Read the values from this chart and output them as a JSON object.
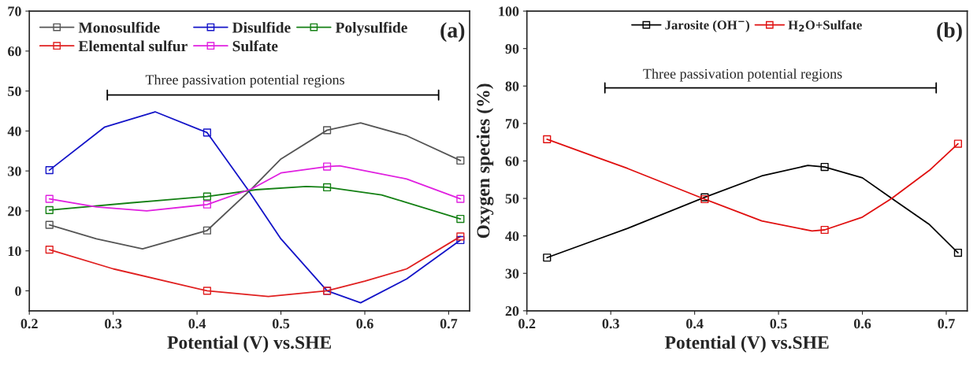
{
  "chart_data": [
    {
      "type": "line",
      "title": "(a)",
      "xlabel": "Potential (V) vs.SHE",
      "xlim": [
        0.2,
        0.725
      ],
      "xticks": [
        0.2,
        0.3,
        0.4,
        0.5,
        0.6,
        0.7
      ],
      "ylim": [
        -5,
        70
      ],
      "yticks": [
        0,
        10,
        20,
        30,
        40,
        50,
        60,
        70
      ],
      "marker": "square",
      "legend": "top left",
      "grid": false,
      "annotations": [
        "Three passivation potential regions"
      ],
      "series": [
        {
          "name": "Monosulfide",
          "color": "#555555",
          "marker": "none",
          "x": [
            0.224,
            0.28,
            0.335,
            0.412,
            0.465,
            0.5,
            0.555,
            0.595,
            0.65,
            0.714
          ],
          "values": [
            16.5,
            13,
            10.5,
            15.1,
            25.5,
            33,
            40.2,
            42,
            38.8,
            32.6
          ]
        },
        {
          "name": "Disulfide",
          "color": "#1414c8",
          "marker": "none",
          "x": [
            0.224,
            0.29,
            0.35,
            0.412,
            0.46,
            0.5,
            0.555,
            0.595,
            0.65,
            0.714
          ],
          "values": [
            30.2,
            41,
            44.8,
            39.6,
            25.5,
            13,
            0,
            -3,
            3,
            12.7
          ]
        },
        {
          "name": "Polysulfide",
          "color": "#148014",
          "marker": "none",
          "x": [
            0.224,
            0.32,
            0.412,
            0.47,
            0.53,
            0.555,
            0.62,
            0.714
          ],
          "values": [
            20.2,
            22,
            23.6,
            25.3,
            26.1,
            25.9,
            24,
            18.0
          ]
        },
        {
          "name": "Elemental sulfur",
          "color": "#e02020",
          "marker": "none",
          "x": [
            0.224,
            0.3,
            0.412,
            0.485,
            0.555,
            0.6,
            0.65,
            0.714
          ],
          "values": [
            10.3,
            5.5,
            0,
            -1.4,
            0,
            2.4,
            5.5,
            13.6
          ]
        },
        {
          "name": "Sulfate",
          "color": "#e020e0",
          "marker": "none",
          "x": [
            0.224,
            0.28,
            0.34,
            0.412,
            0.465,
            0.5,
            0.555,
            0.57,
            0.65,
            0.714
          ],
          "values": [
            23.0,
            21,
            20,
            21.6,
            25.5,
            29.5,
            31.1,
            31.3,
            28,
            23.0
          ]
        },
        {
          "type": "scatter",
          "color": "#555555",
          "x": [
            0.224,
            0.412,
            0.555,
            0.714
          ],
          "values": [
            16.5,
            15.1,
            40.2,
            32.6
          ]
        },
        {
          "type": "scatter",
          "color": "#1414c8",
          "x": [
            0.224,
            0.412,
            0.555,
            0.714
          ],
          "values": [
            30.2,
            39.6,
            0,
            12.7
          ]
        },
        {
          "type": "scatter",
          "color": "#148014",
          "x": [
            0.224,
            0.412,
            0.555,
            0.714
          ],
          "values": [
            20.2,
            23.6,
            25.9,
            18.0
          ]
        },
        {
          "type": "scatter",
          "color": "#e02020",
          "x": [
            0.224,
            0.412,
            0.555,
            0.714
          ],
          "values": [
            10.3,
            0,
            0,
            13.6
          ]
        },
        {
          "type": "scatter",
          "color": "#e020e0",
          "x": [
            0.224,
            0.412,
            0.555,
            0.714
          ],
          "values": [
            23.0,
            21.6,
            31.1,
            23.0
          ]
        },
        {
          "type": "line",
          "color": "#000000",
          "marker": "none",
          "x": [
            0.293,
            0.293,
            0.293,
            0.688,
            0.688,
            0.688
          ],
          "values": [
            47.8,
            50.2,
            49,
            49,
            50.2,
            47.8
          ]
        }
      ]
    },
    {
      "type": "line",
      "title": "(b)",
      "xlabel": "Potential (V) vs.SHE",
      "ylabel": "Oxygen species (%)",
      "xlim": [
        0.2,
        0.725
      ],
      "xticks": [
        0.2,
        0.3,
        0.4,
        0.5,
        0.6,
        0.7
      ],
      "ylim": [
        20,
        100
      ],
      "yticks": [
        20,
        30,
        40,
        50,
        60,
        70,
        80,
        90,
        100
      ],
      "marker": "square",
      "legend": "top",
      "grid": false,
      "annotations": [
        "Three passivation potential regions"
      ],
      "series": [
        {
          "name": "Jarosite (OH$^{−}$)",
          "color": "#000000",
          "marker": "none",
          "x": [
            0.224,
            0.32,
            0.412,
            0.48,
            0.535,
            0.555,
            0.6,
            0.635,
            0.68,
            0.714
          ],
          "values": [
            34.2,
            42,
            50.3,
            56,
            58.8,
            58.4,
            55.5,
            50,
            43,
            35.5
          ]
        },
        {
          "name": "H$_{2}$O+Sulfate",
          "color": "#e01010",
          "marker": "none",
          "x": [
            0.224,
            0.32,
            0.412,
            0.48,
            0.54,
            0.555,
            0.6,
            0.635,
            0.68,
            0.714
          ],
          "values": [
            65.8,
            58,
            49.8,
            44,
            41.3,
            41.6,
            45,
            50,
            57.5,
            64.6
          ]
        },
        {
          "type": "scatter",
          "color": "#000000",
          "x": [
            0.224,
            0.412,
            0.555,
            0.714
          ],
          "values": [
            34.2,
            50.3,
            58.4,
            35.5
          ]
        },
        {
          "type": "scatter",
          "color": "#e01010",
          "x": [
            0.224,
            0.412,
            0.555,
            0.714
          ],
          "values": [
            65.8,
            49.8,
            41.6,
            64.6
          ]
        },
        {
          "type": "line",
          "color": "#000000",
          "marker": "none",
          "x": [
            0.293,
            0.293,
            0.293,
            0.688,
            0.688,
            0.688
          ],
          "values": [
            78.2,
            80.8,
            79.5,
            79.5,
            80.8,
            78.2
          ]
        }
      ]
    }
  ]
}
